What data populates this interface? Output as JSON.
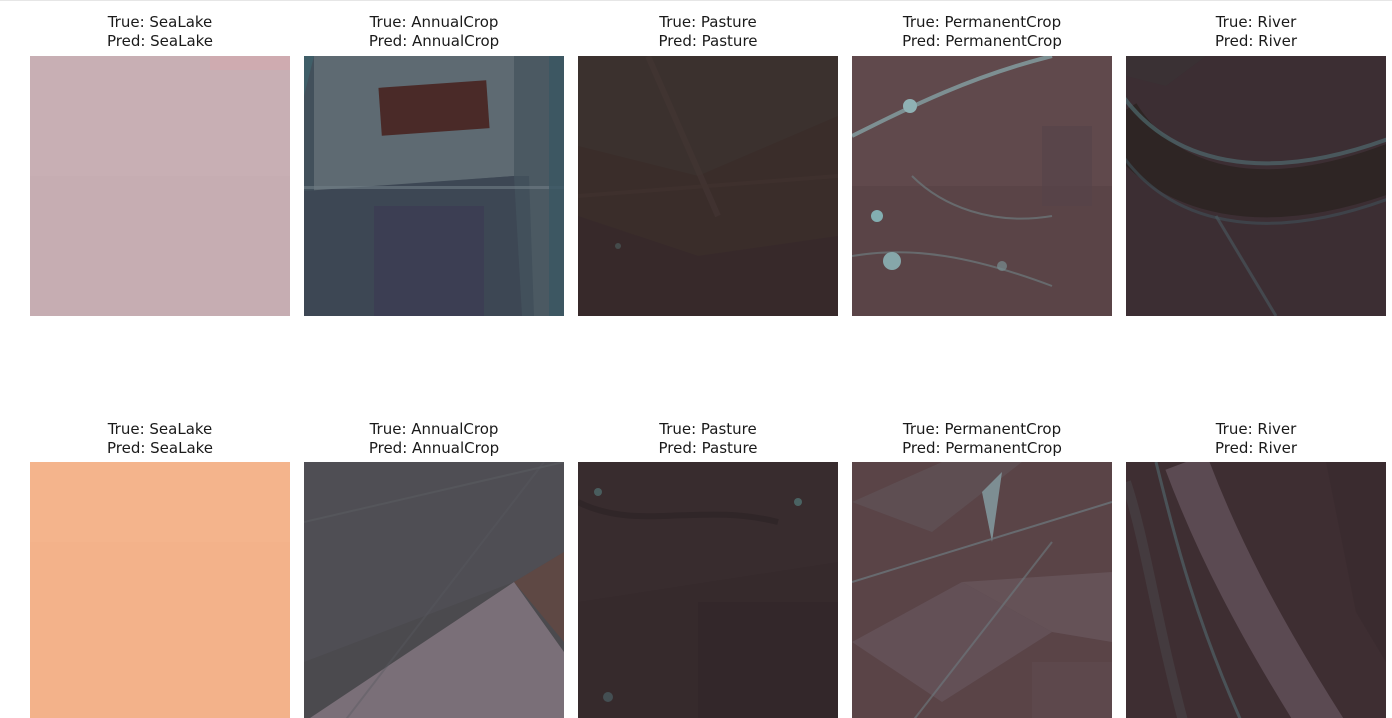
{
  "figure": {
    "rows": [
      {
        "panels": [
          {
            "true_label": "True: SeaLake",
            "pred_label": "Pred: SeaLake",
            "scene": "sealake-mauve"
          },
          {
            "true_label": "True: AnnualCrop",
            "pred_label": "Pred: AnnualCrop",
            "scene": "annualcrop-fields"
          },
          {
            "true_label": "True: Pasture",
            "pred_label": "Pred: Pasture",
            "scene": "pasture-dark"
          },
          {
            "true_label": "True: PermanentCrop",
            "pred_label": "Pred: PermanentCrop",
            "scene": "permanentcrop-roads"
          },
          {
            "true_label": "True: River",
            "pred_label": "Pred: River",
            "scene": "river-bend"
          }
        ]
      },
      {
        "panels": [
          {
            "true_label": "True: SeaLake",
            "pred_label": "Pred: SeaLake",
            "scene": "sealake-peach"
          },
          {
            "true_label": "True: AnnualCrop",
            "pred_label": "Pred: AnnualCrop",
            "scene": "annualcrop-diagonal"
          },
          {
            "true_label": "True: Pasture",
            "pred_label": "Pred: Pasture",
            "scene": "pasture-dark"
          },
          {
            "true_label": "True: PermanentCrop",
            "pred_label": "Pred: PermanentCrop",
            "scene": "permanentcrop-parcels"
          },
          {
            "true_label": "True: River",
            "pred_label": "Pred: River",
            "scene": "river-channel"
          }
        ]
      }
    ]
  },
  "colors": {
    "sealake_mauve": "#c6adb2",
    "sealake_peach": "#f3b28a",
    "annualcrop_base": "#3e4c57",
    "pasture_base": "#3a2c2a",
    "permanentcrop_base": "#5a4447",
    "river_base": "#3c2e33"
  }
}
